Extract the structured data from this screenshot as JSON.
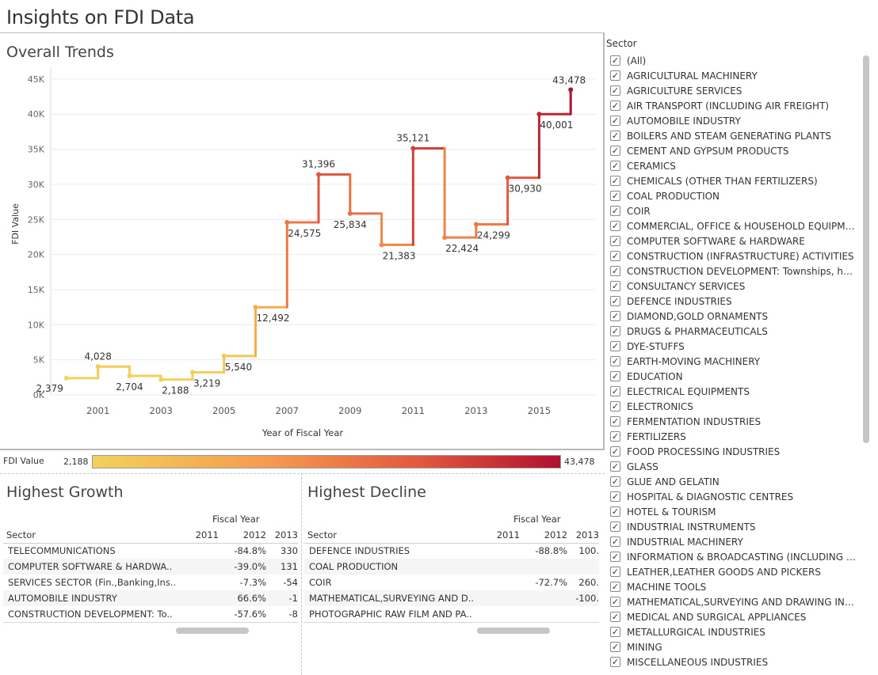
{
  "dashboard_title": "Insights on FDI Data",
  "trends": {
    "title": "Overall Trends"
  },
  "chart_data": {
    "type": "line",
    "line_style": "step",
    "title": "Overall Trends",
    "xlabel": "Year of Fiscal Year",
    "ylabel": "FDI Value",
    "x_ticks": [
      "2001",
      "2003",
      "2005",
      "2007",
      "2009",
      "2011",
      "2013",
      "2015"
    ],
    "y_ticks": [
      "0K",
      "5K",
      "10K",
      "15K",
      "20K",
      "25K",
      "30K",
      "35K",
      "40K",
      "45K"
    ],
    "ylim": [
      0,
      46000
    ],
    "xlim": [
      1999.5,
      2016.8
    ],
    "gridlines": "horizontal",
    "color_encoding": "FDI Value",
    "points": [
      {
        "year": 2000,
        "value": 2379,
        "label": "2,379"
      },
      {
        "year": 2001,
        "value": 4028,
        "label": "4,028"
      },
      {
        "year": 2002,
        "value": 2704,
        "label": "2,704"
      },
      {
        "year": 2003,
        "value": 2188,
        "label": "2,188"
      },
      {
        "year": 2004,
        "value": 3219,
        "label": "3,219"
      },
      {
        "year": 2005,
        "value": 5540,
        "label": "5,540"
      },
      {
        "year": 2006,
        "value": 12492,
        "label": "12,492"
      },
      {
        "year": 2007,
        "value": 24575,
        "label": "24,575"
      },
      {
        "year": 2008,
        "value": 31396,
        "label": "31,396"
      },
      {
        "year": 2009,
        "value": 25834,
        "label": "25,834"
      },
      {
        "year": 2010,
        "value": 21383,
        "label": "21,383"
      },
      {
        "year": 2011,
        "value": 35121,
        "label": "35,121"
      },
      {
        "year": 2012,
        "value": 22424,
        "label": "22,424"
      },
      {
        "year": 2013,
        "value": 24299,
        "label": "24,299"
      },
      {
        "year": 2014,
        "value": 30930,
        "label": "30,930"
      },
      {
        "year": 2015,
        "value": 40001,
        "label": "40,001"
      },
      {
        "year": 2016,
        "value": 43478,
        "label": "43,478"
      }
    ]
  },
  "legend": {
    "label": "FDI Value",
    "min": "2,188",
    "max": "43,478",
    "colors": [
      "#f2d25c",
      "#f59a4f",
      "#e1583f",
      "#b0112f"
    ]
  },
  "growth": {
    "title": "Highest Growth",
    "fy_header": "Fiscal Year",
    "sector_header": "Sector",
    "columns": [
      "2011",
      "2012",
      "2013"
    ],
    "rows": [
      {
        "sector": "TELECOMMUNICATIONS",
        "v2011": "",
        "v2012": "-84.8%",
        "v2013": "330"
      },
      {
        "sector": "COMPUTER SOFTWARE & HARDWA..",
        "v2011": "",
        "v2012": "-39.0%",
        "v2013": "131"
      },
      {
        "sector": "SERVICES SECTOR (Fin.,Banking,Ins..",
        "v2011": "",
        "v2012": "-7.3%",
        "v2013": "-54"
      },
      {
        "sector": "AUTOMOBILE INDUSTRY",
        "v2011": "",
        "v2012": "66.6%",
        "v2013": "-1"
      },
      {
        "sector": "CONSTRUCTION DEVELOPMENT: To..",
        "v2011": "",
        "v2012": "-57.6%",
        "v2013": "-8"
      }
    ]
  },
  "decline": {
    "title": "Highest Decline",
    "fy_header": "Fiscal Year",
    "sector_header": "Sector",
    "columns": [
      "2011",
      "2012",
      "2013"
    ],
    "rows": [
      {
        "sector": "DEFENCE INDUSTRIES",
        "v2011": "",
        "v2012": "-88.8%",
        "v2013": "100."
      },
      {
        "sector": "COAL PRODUCTION",
        "v2011": "",
        "v2012": "",
        "v2013": ""
      },
      {
        "sector": "COIR",
        "v2011": "",
        "v2012": "-72.7%",
        "v2013": "260."
      },
      {
        "sector": "MATHEMATICAL,SURVEYING AND D..",
        "v2011": "",
        "v2012": "",
        "v2013": "-100."
      },
      {
        "sector": "PHOTOGRAPHIC RAW FILM AND PA..",
        "v2011": "",
        "v2012": "",
        "v2013": ""
      }
    ]
  },
  "filter": {
    "title": "Sector",
    "check_glyph": "✓",
    "items": [
      "(All)",
      "AGRICULTURAL MACHINERY",
      "AGRICULTURE SERVICES",
      "AIR TRANSPORT (INCLUDING AIR FREIGHT)",
      "AUTOMOBILE INDUSTRY",
      "BOILERS AND STEAM GENERATING PLANTS",
      "CEMENT AND GYPSUM PRODUCTS",
      "CERAMICS",
      "CHEMICALS (OTHER THAN FERTILIZERS)",
      "COAL PRODUCTION",
      "COIR",
      "COMMERCIAL, OFFICE & HOUSEHOLD EQUIPMENTS",
      "COMPUTER SOFTWARE & HARDWARE",
      "CONSTRUCTION (INFRASTRUCTURE) ACTIVITIES",
      "CONSTRUCTION DEVELOPMENT: Townships, hou...",
      "CONSULTANCY SERVICES",
      "DEFENCE INDUSTRIES",
      "DIAMOND,GOLD ORNAMENTS",
      "DRUGS & PHARMACEUTICALS",
      "DYE-STUFFS",
      "EARTH-MOVING MACHINERY",
      "EDUCATION",
      "ELECTRICAL EQUIPMENTS",
      "ELECTRONICS",
      "FERMENTATION INDUSTRIES",
      "FERTILIZERS",
      "FOOD PROCESSING INDUSTRIES",
      "GLASS",
      "GLUE AND GELATIN",
      "HOSPITAL & DIAGNOSTIC CENTRES",
      "HOTEL & TOURISM",
      "INDUSTRIAL INSTRUMENTS",
      "INDUSTRIAL MACHINERY",
      "INFORMATION & BROADCASTING (INCLUDING PR...",
      "LEATHER,LEATHER GOODS AND PICKERS",
      "MACHINE TOOLS",
      "MATHEMATICAL,SURVEYING AND DRAWING INS...",
      "MEDICAL AND SURGICAL APPLIANCES",
      "METALLURGICAL INDUSTRIES",
      "MINING",
      "MISCELLANEOUS INDUSTRIES"
    ]
  }
}
